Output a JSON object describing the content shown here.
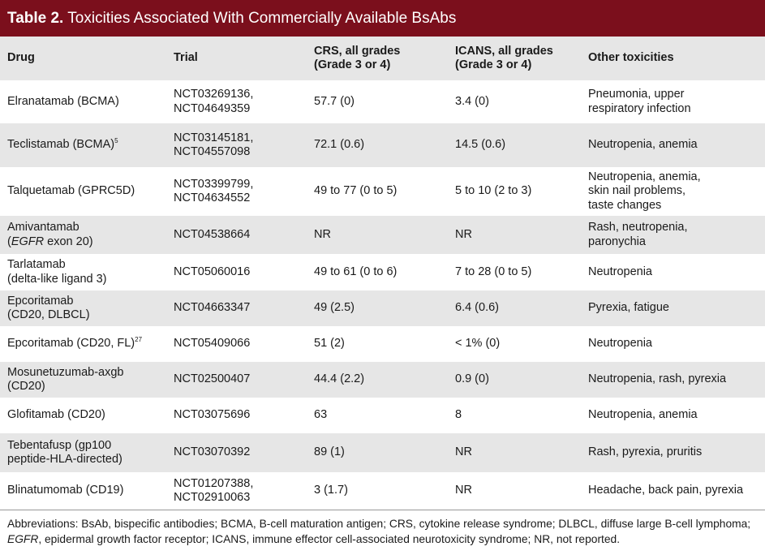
{
  "title": {
    "label": "Table 2.",
    "text": "Toxicities Associated With Commercially Available BsAbs"
  },
  "table": {
    "header": [
      [
        "Drug"
      ],
      [
        "Trial"
      ],
      [
        "CRS, all grades",
        "(Grade 3 or 4)"
      ],
      [
        "ICANS, all grades",
        "(Grade 3 or 4)"
      ],
      [
        "Other toxicities"
      ]
    ],
    "rows": [
      [
        [
          "Elranatamab (BCMA)"
        ],
        [
          "NCT03269136,",
          "NCT04649359"
        ],
        [
          "57.7 (0)"
        ],
        [
          "3.4 (0)"
        ],
        [
          "Pneumonia, upper",
          "respiratory infection"
        ]
      ],
      [
        [
          [
            {
              "text": "Teclistamab (BCMA)",
              "style": "normal"
            },
            {
              "text": "5",
              "style": "sup"
            }
          ]
        ],
        [
          "NCT03145181,",
          "NCT04557098"
        ],
        [
          "72.1 (0.6)"
        ],
        [
          "14.5 (0.6)"
        ],
        [
          "Neutropenia, anemia"
        ]
      ],
      [
        [
          "Talquetamab (GPRC5D)"
        ],
        [
          "NCT03399799,",
          "NCT04634552"
        ],
        [
          "49 to 77 (0 to 5)"
        ],
        [
          "5 to 10 (2 to 3)"
        ],
        [
          "Neutropenia, anemia,",
          "skin nail problems,",
          "taste changes"
        ]
      ],
      [
        [
          "Amivantamab",
          [
            {
              "text": "(",
              "style": "normal"
            },
            {
              "text": "EGFR",
              "style": "italic"
            },
            {
              "text": " exon 20)",
              "style": "normal"
            }
          ]
        ],
        [
          "NCT04538664"
        ],
        [
          "NR"
        ],
        [
          "NR"
        ],
        [
          "Rash, neutropenia,",
          "paronychia"
        ]
      ],
      [
        [
          "Tarlatamab",
          "(delta-like ligand 3)"
        ],
        [
          "NCT05060016"
        ],
        [
          "49 to 61 (0 to 6)"
        ],
        [
          "7 to 28 (0 to 5)"
        ],
        [
          "Neutropenia"
        ]
      ],
      [
        [
          "Epcoritamab",
          "(CD20, DLBCL)"
        ],
        [
          "NCT04663347"
        ],
        [
          "49 (2.5)"
        ],
        [
          "6.4 (0.6)"
        ],
        [
          "Pyrexia, fatigue"
        ]
      ],
      [
        [
          [
            {
              "text": "Epcoritamab (CD20, FL)",
              "style": "normal"
            },
            {
              "text": "27",
              "style": "sup"
            }
          ]
        ],
        [
          "NCT05409066"
        ],
        [
          "51 (2)"
        ],
        [
          "< 1% (0)"
        ],
        [
          "Neutropenia"
        ]
      ],
      [
        [
          "Mosunetuzumab-axgb",
          "(CD20)"
        ],
        [
          "NCT02500407"
        ],
        [
          "44.4 (2.2)"
        ],
        [
          "0.9 (0)"
        ],
        [
          "Neutropenia, rash, pyrexia"
        ]
      ],
      [
        [
          "Glofitamab (CD20)"
        ],
        [
          "NCT03075696"
        ],
        [
          "63"
        ],
        [
          "8"
        ],
        [
          "Neutropenia, anemia"
        ]
      ],
      [
        [
          "Tebentafusp (gp100",
          "peptide-HLA-directed)"
        ],
        [
          "NCT03070392"
        ],
        [
          "89 (1)"
        ],
        [
          "NR"
        ],
        [
          "Rash, pyrexia, pruritis"
        ]
      ],
      [
        [
          "Blinatumomab (CD19)"
        ],
        [
          "NCT01207388,",
          "NCT02910063"
        ],
        [
          "3 (1.7)"
        ],
        [
          "NR"
        ],
        [
          "Headache, back pain, pyrexia"
        ]
      ]
    ]
  },
  "footnote": [
    {
      "text": "Abbreviations: BsAb, bispecific antibodies; BCMA, B-cell maturation antigen; CRS, cytokine release syndrome; DLBCL, diffuse large B-cell lymphoma; ",
      "style": "normal"
    },
    {
      "text": "EGFR",
      "style": "italic"
    },
    {
      "text": ", epidermal growth factor receptor; ICANS, immune effector cell-associated neurotoxicity syndrome; NR, not reported.",
      "style": "normal"
    }
  ]
}
